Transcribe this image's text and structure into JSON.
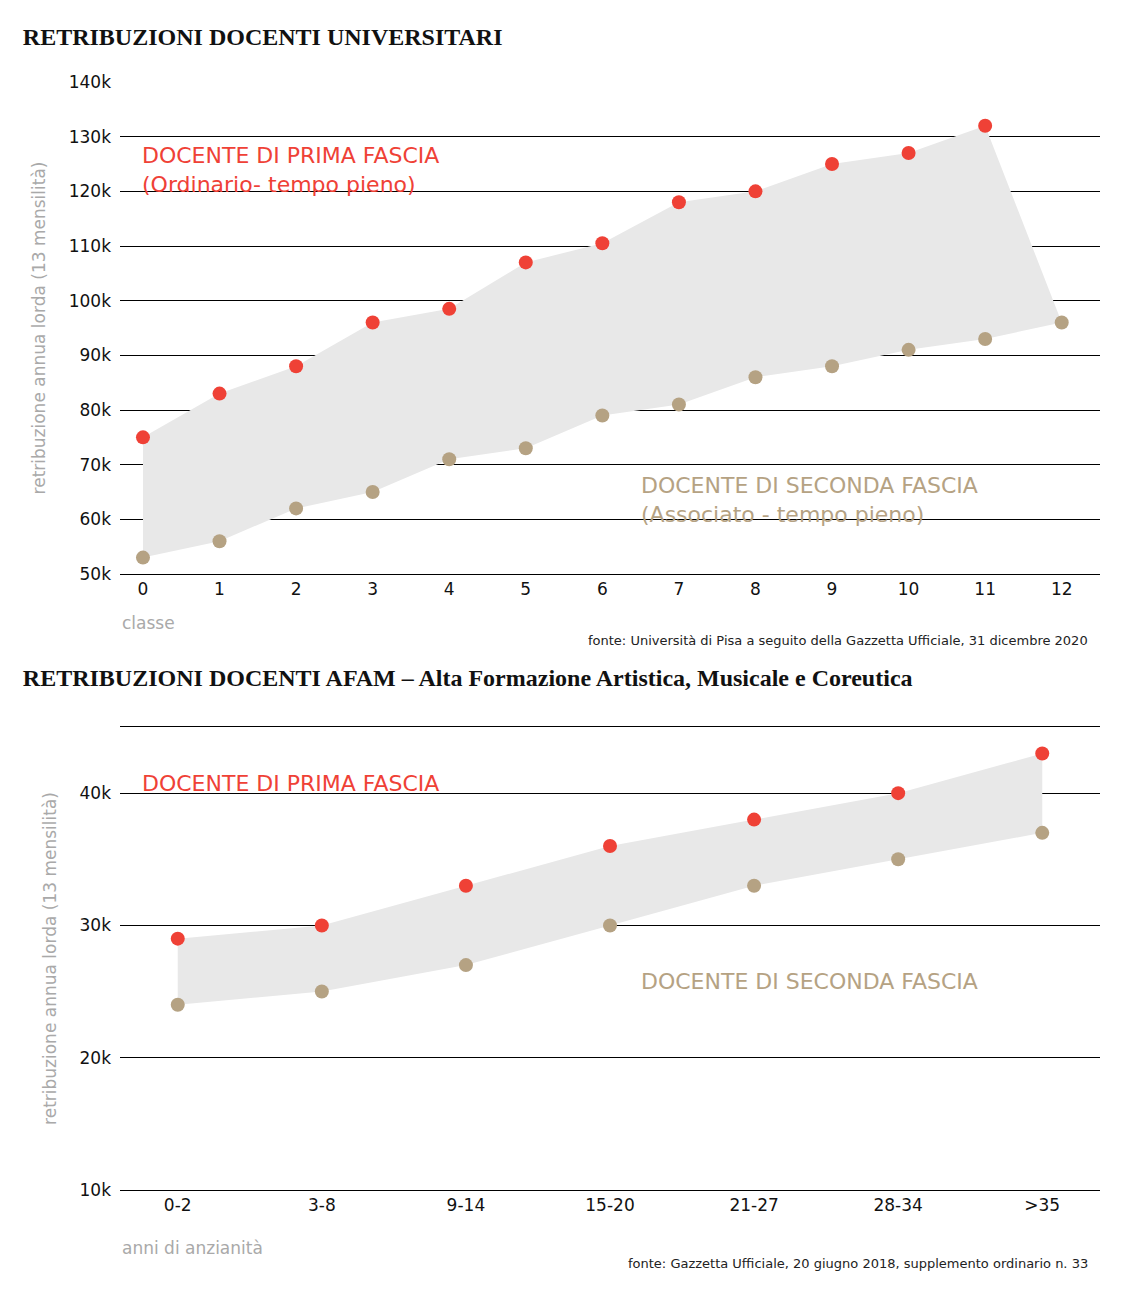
{
  "chart_data": [
    {
      "type": "scatter",
      "title": "RETRIBUZIONI DOCENTI UNIVERSITARI",
      "x": [
        0,
        1,
        2,
        3,
        4,
        5,
        6,
        7,
        8,
        9,
        10,
        11,
        12
      ],
      "series": [
        {
          "name": "DOCENTE DI PRIMA FASCIA\n(Ordinario- tempo pieno)",
          "color": "#ef4136",
          "values": [
            75000,
            83000,
            88000,
            96000,
            98500,
            107000,
            110500,
            118000,
            120000,
            125000,
            127000,
            132000,
            null
          ]
        },
        {
          "name": "DOCENTE DI SECONDA FASCIA\n(Associato - tempo pieno)",
          "color": "#b5a283",
          "values": [
            53000,
            56000,
            62000,
            65000,
            71000,
            73000,
            79000,
            81000,
            86000,
            88000,
            91000,
            93000,
            96000
          ]
        }
      ],
      "xlabel": "classe",
      "ylabel": "retribuzione annua lorda (13 mensilità)",
      "xlim": [
        -0.3,
        12.5
      ],
      "xticks": [
        0,
        1,
        2,
        3,
        4,
        5,
        6,
        7,
        8,
        9,
        10,
        11,
        12
      ],
      "ylim": [
        50000,
        140000
      ],
      "yticks": [
        {
          "value": 50000,
          "label": "50k"
        },
        {
          "value": 60000,
          "label": "60k"
        },
        {
          "value": 70000,
          "label": "70k"
        },
        {
          "value": 80000,
          "label": "80k"
        },
        {
          "value": 90000,
          "label": "90k"
        },
        {
          "value": 100000,
          "label": "100k"
        },
        {
          "value": 110000,
          "label": "110k"
        },
        {
          "value": 120000,
          "label": "120k"
        },
        {
          "value": 130000,
          "label": "130k"
        },
        {
          "value": 140000,
          "label": "140k"
        }
      ],
      "grid": true,
      "marker": "circle",
      "annotations": [
        "fonte: Università di Pisa a seguito della Gazzetta Ufficiale, 31 dicembre 2020"
      ]
    },
    {
      "type": "scatter",
      "title": "RETRIBUZIONI DOCENTI AFAM – Alta Formazione Artistica, Musicale e Coreutica",
      "categories": [
        "0-2",
        "3-8",
        "9-14",
        "15-20",
        "21-27",
        "28-34",
        ">35"
      ],
      "series": [
        {
          "name": "DOCENTE DI PRIMA FASCIA",
          "color": "#ef4136",
          "values": [
            29000,
            30000,
            33000,
            36000,
            38000,
            40000,
            43000
          ]
        },
        {
          "name": "DOCENTE DI SECONDA FASCIA",
          "color": "#b5a283",
          "values": [
            24000,
            25000,
            27000,
            30000,
            33000,
            35000,
            37000
          ]
        }
      ],
      "xlabel": "anni di anzianità",
      "ylabel": "retribuzione annua lorda (13 mensilità)",
      "ylim": [
        10000,
        45000
      ],
      "yticks": [
        {
          "value": 10000,
          "label": "10k"
        },
        {
          "value": 20000,
          "label": "20k"
        },
        {
          "value": 30000,
          "label": "30k"
        },
        {
          "value": 40000,
          "label": "40k"
        }
      ],
      "grid": true,
      "marker": "circle",
      "annotations": [
        "fonte: Gazzetta Ufficiale, 20 giugno 2018, supplemento ordinario n. 33"
      ]
    }
  ]
}
